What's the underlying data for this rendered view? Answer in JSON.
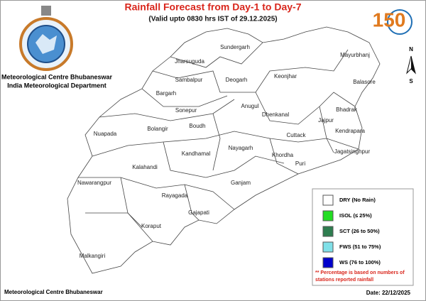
{
  "header": {
    "title": "Rainfall Forecast from Day-1 to Day-7",
    "subtitle": "(Valid upto 0830 hrs IST of 29.12.2025)"
  },
  "organization": [
    "Meteorological Centre Bhubaneswar",
    "India Meteorological Department"
  ],
  "logo": {
    "text": "150"
  },
  "compass": {
    "north": "N",
    "south": "S"
  },
  "districts": [
    "Sundergarh",
    "Jharsuguda",
    "Mayurbhanj",
    "Keonjhar",
    "Sambalpur",
    "Deogarh",
    "Balasore",
    "Bargarh",
    "Anugul",
    "Bhadrak",
    "Dhenkanal",
    "Sonepur",
    "Jajpur",
    "Kendrapara",
    "Nuapada",
    "Bolangir",
    "Boudh",
    "Cuttack",
    "Jagatsinghpur",
    "Kandhamal",
    "Nayagarh",
    "Khordha",
    "Puri",
    "Kalahandi",
    "Nawarangpur",
    "Ganjam",
    "Rayagada",
    "Gajapati",
    "Koraput",
    "Malkangiri"
  ],
  "legend": {
    "items": [
      {
        "label": "DRY (No Rain)",
        "color": "#ffffff"
      },
      {
        "label": "ISOL (≤ 25%)",
        "color": "#22dd22"
      },
      {
        "label": "SCT (26 to 50%)",
        "color": "#2e7d4f"
      },
      {
        "label": "FWS (51 to 75%)",
        "color": "#80e0e8"
      },
      {
        "label": "WS (76 to 100%)",
        "color": "#0000cc"
      }
    ],
    "note": [
      "** Percentage is based on numbers of",
      "stations reported rainfall"
    ]
  },
  "footer": {
    "left": "Meteorological Centre Bhubaneswar",
    "date": "Date: 22/12/2025"
  }
}
